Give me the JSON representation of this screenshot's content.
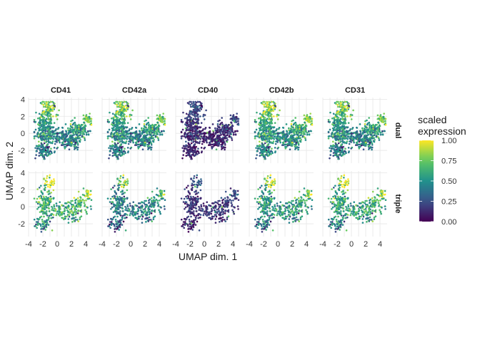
{
  "chart_data": {
    "type": "scatter",
    "xlabel": "UMAP dim. 1",
    "ylabel": "UMAP dim. 2",
    "xlim": [
      -4,
      5
    ],
    "ylim": [
      -3.5,
      4.2
    ],
    "x_ticks": [
      -4,
      -2,
      0,
      2,
      4
    ],
    "y_ticks": [
      -2,
      0,
      2,
      4
    ],
    "grid": true,
    "facet_columns": [
      "CD41",
      "CD42a",
      "CD40",
      "CD42b",
      "CD31"
    ],
    "facet_rows": [
      "dual",
      "triple"
    ],
    "colorbar": {
      "title_lines": [
        "scaled",
        "expression"
      ],
      "colormap": "viridis",
      "range": [
        0,
        1
      ],
      "ticks": [
        "0.00",
        "0.25",
        "0.50",
        "0.75",
        "1.00"
      ],
      "colors": [
        "#440154",
        "#3b528b",
        "#21918c",
        "#5ec962",
        "#fde725"
      ]
    },
    "legend_position": "right",
    "panel_mean_expression": {
      "dual": {
        "CD41": 0.45,
        "CD42a": 0.45,
        "CD40": 0.12,
        "CD42b": 0.5,
        "CD31": 0.45
      },
      "triple": {
        "CD41": 0.6,
        "CD42a": 0.4,
        "CD40": 0.15,
        "CD42b": 0.5,
        "CD31": 0.55
      }
    },
    "n_points": {
      "dual": 900,
      "triple": 420
    }
  }
}
